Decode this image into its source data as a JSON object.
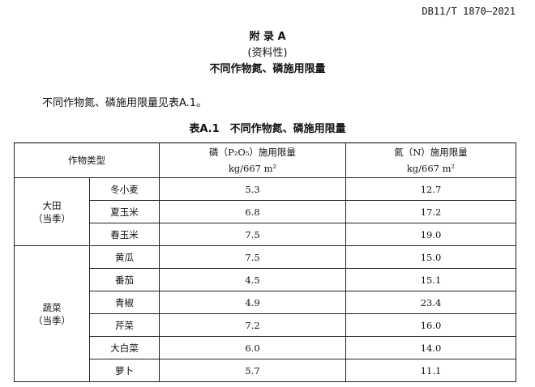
{
  "standard_id": "DB11/T 1870—2021",
  "appendix": "附 录 A",
  "nature": "(资料性)",
  "title": "不同作物氮、磷施用限量",
  "intro": "不同作物氮、磷施用限量见表A.1。",
  "caption": "表A.1　不同作物氮、磷施用限量",
  "headers": {
    "crop_type": "作物类型",
    "p_label": "磷（P₂O₅）施用限量",
    "n_label": "氮（N）施用限量",
    "unit": "kg/667 m²"
  },
  "groups": [
    {
      "name": "大田",
      "sub": "（当季）",
      "rows": [
        {
          "crop": "冬小麦",
          "p": "5.3",
          "n": "12.7"
        },
        {
          "crop": "夏玉米",
          "p": "6.8",
          "n": "17.2"
        },
        {
          "crop": "春玉米",
          "p": "7.5",
          "n": "19.0"
        }
      ]
    },
    {
      "name": "蔬菜",
      "sub": "（当季）",
      "rows": [
        {
          "crop": "黄瓜",
          "p": "7.5",
          "n": "15.0"
        },
        {
          "crop": "番茄",
          "p": "4.5",
          "n": "15.1"
        },
        {
          "crop": "青椒",
          "p": "4.9",
          "n": "23.4"
        },
        {
          "crop": "芹菜",
          "p": "7.2",
          "n": "16.0"
        },
        {
          "crop": "大白菜",
          "p": "6.0",
          "n": "14.0"
        },
        {
          "crop": "萝卜",
          "p": "5.7",
          "n": "11.1"
        }
      ]
    }
  ]
}
